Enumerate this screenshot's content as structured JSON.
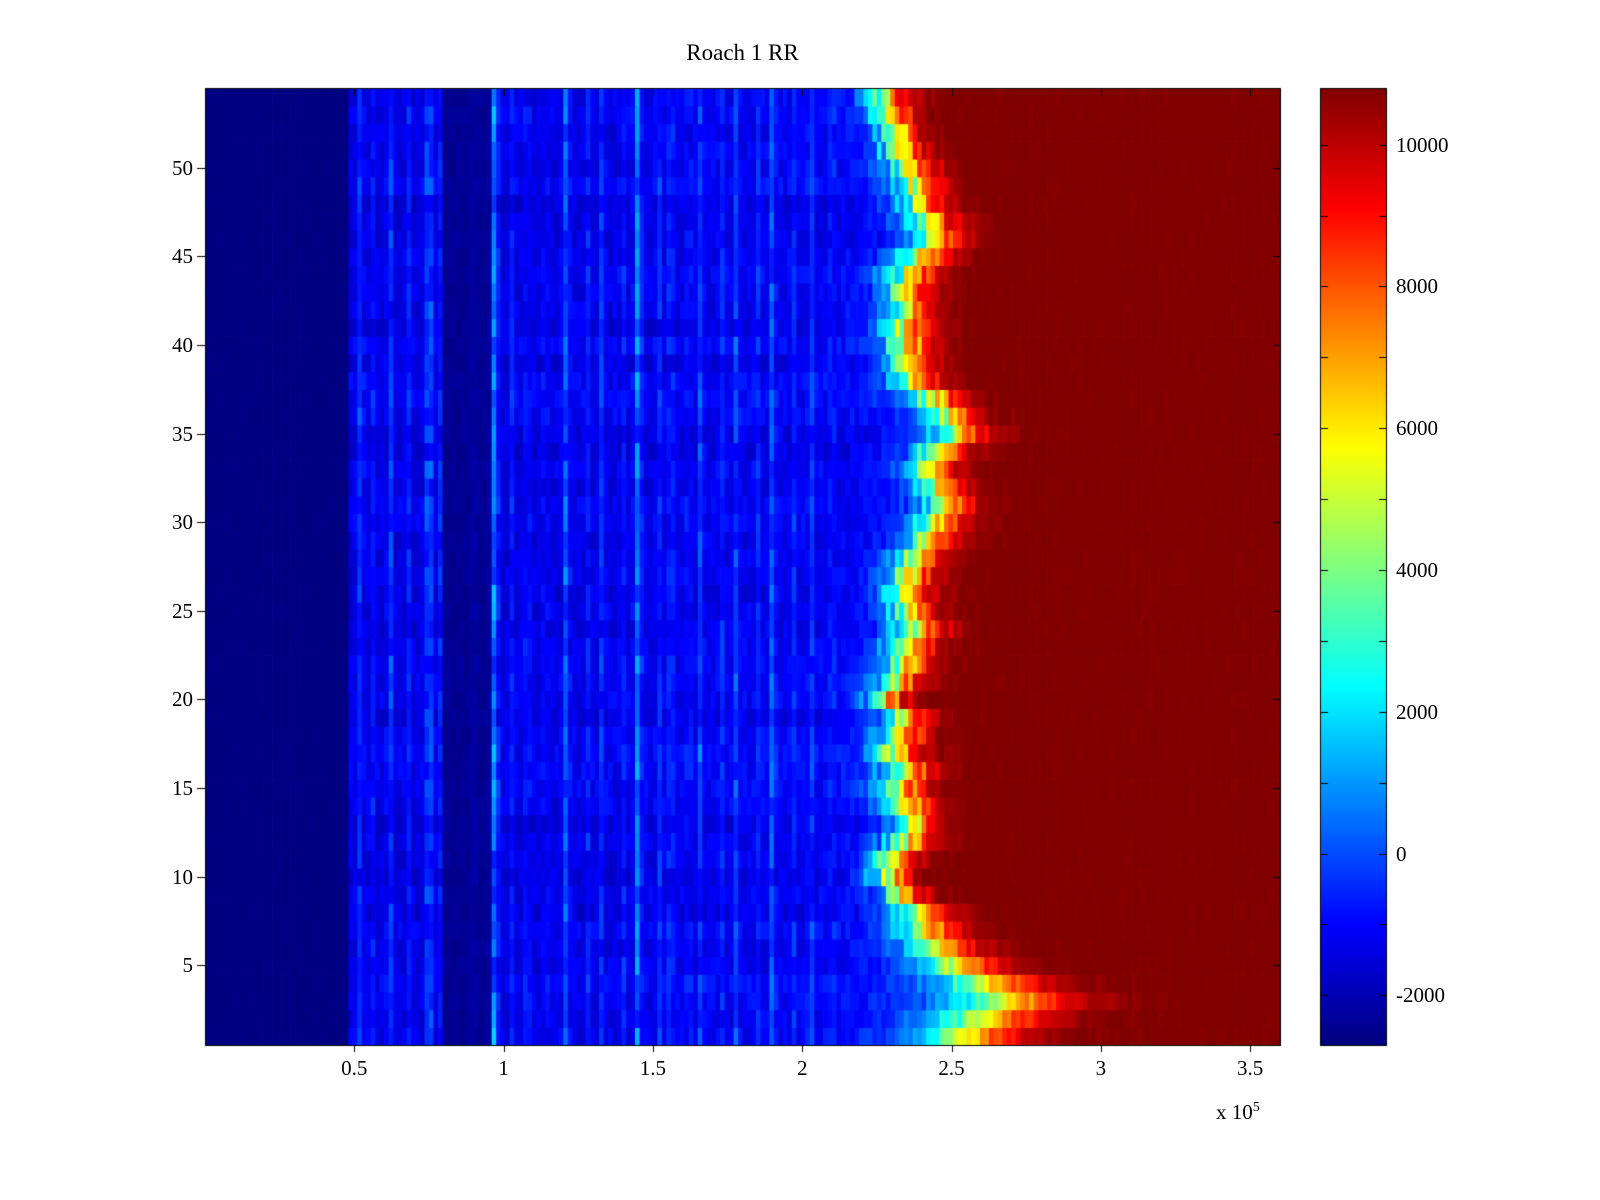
{
  "title": "Roach 1 RR",
  "x_axis": {
    "tick_labels": [
      "0.5",
      "1",
      "1.5",
      "2",
      "2.5",
      "3",
      "3.5"
    ],
    "tick_values": [
      0.5,
      1,
      1.5,
      2,
      2.5,
      3,
      3.5
    ],
    "exponent_base": "x 10",
    "exponent_power": "5",
    "range": [
      0,
      3.6
    ]
  },
  "y_axis": {
    "tick_labels": [
      "5",
      "10",
      "15",
      "20",
      "25",
      "30",
      "35",
      "40",
      "45",
      "50"
    ],
    "tick_values": [
      5,
      10,
      15,
      20,
      25,
      30,
      35,
      40,
      45,
      50
    ],
    "range": [
      0.5,
      54.5
    ]
  },
  "colorbar": {
    "tick_labels": [
      "10000",
      "8000",
      "6000",
      "4000",
      "2000",
      "0",
      "-2000"
    ],
    "tick_values": [
      10000,
      8000,
      6000,
      4000,
      2000,
      0,
      -2000
    ],
    "minor_tick_step": 1000,
    "range": [
      -2700,
      10800
    ],
    "colormap": "jet"
  },
  "chart_data": {
    "type": "heatmap",
    "title": "Roach 1 RR",
    "colormap": "jet",
    "x_range_units_1e5": [
      0,
      3.6
    ],
    "y_range": [
      0.5,
      54.5
    ],
    "n_rows": 54,
    "n_cols": 240,
    "color_range": [
      -2700,
      10800
    ],
    "model": {
      "description": "Value rises from deep-blue baseline on left through streaky blue band to saturated dark-red plateau on right via a per-row sigmoid front near x=2.2-2.6 (x in 1e5 units).",
      "left_flat_region": {
        "x_max": 0.48,
        "value": -2700,
        "noise": 80
      },
      "dark_band": {
        "x_min": 0.8,
        "x_max": 0.96,
        "value": -2450,
        "noise": 150
      },
      "mid_region": {
        "value": -1380,
        "noise": 420,
        "row_noise": 200,
        "ramp_from_x": 1.0,
        "ramp_per_unit": 180
      },
      "high_plateau_value": 10900,
      "transition_center_per_row_bottom_to_top": [
        2.52,
        2.58,
        2.66,
        2.6,
        2.5,
        2.44,
        2.4,
        2.38,
        2.33,
        2.28,
        2.3,
        2.34,
        2.36,
        2.34,
        2.32,
        2.34,
        2.31,
        2.32,
        2.33,
        2.27,
        2.31,
        2.33,
        2.35,
        2.37,
        2.35,
        2.34,
        2.35,
        2.37,
        2.41,
        2.44,
        2.47,
        2.44,
        2.41,
        2.44,
        2.5,
        2.48,
        2.43,
        2.37,
        2.35,
        2.34,
        2.33,
        2.35,
        2.34,
        2.35,
        2.39,
        2.43,
        2.41,
        2.39,
        2.37,
        2.35,
        2.32,
        2.31,
        2.29,
        2.27
      ],
      "transition_sharpness_per_row": [
        0.1,
        0.11,
        0.12,
        0.1,
        0.08,
        0.07,
        0.06,
        0.055,
        0.04,
        0.035,
        0.04,
        0.045,
        0.045,
        0.045,
        0.045,
        0.045,
        0.045,
        0.045,
        0.045,
        0.035,
        0.045,
        0.045,
        0.045,
        0.05,
        0.045,
        0.045,
        0.045,
        0.05,
        0.05,
        0.05,
        0.05,
        0.05,
        0.045,
        0.05,
        0.055,
        0.05,
        0.05,
        0.045,
        0.045,
        0.045,
        0.045,
        0.045,
        0.045,
        0.045,
        0.05,
        0.05,
        0.05,
        0.045,
        0.045,
        0.045,
        0.04,
        0.04,
        0.04,
        0.04
      ],
      "bright_vertical_streaks": [
        {
          "x": 0.52,
          "amp": 900,
          "w": 0.01
        },
        {
          "x": 0.56,
          "amp": 600,
          "w": 0.008
        },
        {
          "x": 0.62,
          "amp": 1100,
          "w": 0.009
        },
        {
          "x": 0.68,
          "amp": 700,
          "w": 0.008
        },
        {
          "x": 0.75,
          "amp": 1800,
          "w": 0.01
        },
        {
          "x": 0.79,
          "amp": 800,
          "w": 0.007
        },
        {
          "x": 0.9,
          "amp": 500,
          "w": 0.007
        },
        {
          "x": 0.97,
          "amp": 2200,
          "w": 0.011
        },
        {
          "x": 1.03,
          "amp": 700,
          "w": 0.008
        },
        {
          "x": 1.08,
          "amp": 900,
          "w": 0.008
        },
        {
          "x": 1.14,
          "amp": 600,
          "w": 0.008
        },
        {
          "x": 1.21,
          "amp": 1600,
          "w": 0.01
        },
        {
          "x": 1.28,
          "amp": 700,
          "w": 0.008
        },
        {
          "x": 1.33,
          "amp": 900,
          "w": 0.009
        },
        {
          "x": 1.4,
          "amp": 700,
          "w": 0.008
        },
        {
          "x": 1.45,
          "amp": 2000,
          "w": 0.011
        },
        {
          "x": 1.52,
          "amp": 800,
          "w": 0.008
        },
        {
          "x": 1.56,
          "amp": 1000,
          "w": 0.009
        },
        {
          "x": 1.62,
          "amp": 700,
          "w": 0.008
        },
        {
          "x": 1.66,
          "amp": 1200,
          "w": 0.009
        },
        {
          "x": 1.73,
          "amp": 700,
          "w": 0.008
        },
        {
          "x": 1.78,
          "amp": 1100,
          "w": 0.009
        },
        {
          "x": 1.85,
          "amp": 700,
          "w": 0.008
        },
        {
          "x": 1.9,
          "amp": 1400,
          "w": 0.01
        },
        {
          "x": 1.97,
          "amp": 700,
          "w": 0.008
        },
        {
          "x": 2.03,
          "amp": 1000,
          "w": 0.009
        },
        {
          "x": 2.1,
          "amp": 800,
          "w": 0.008
        }
      ]
    }
  }
}
